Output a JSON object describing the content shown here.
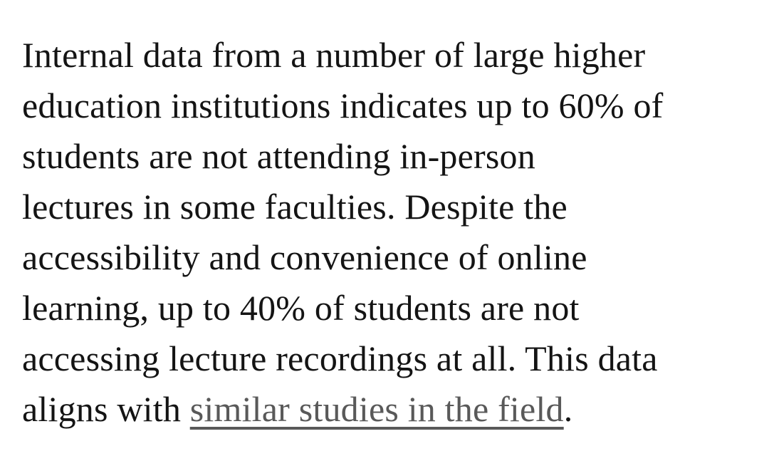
{
  "colors": {
    "background": "#ffffff",
    "text": "#141414",
    "link": "#595959"
  },
  "paragraph": {
    "full_text": "Internal data from a number of large higher education institutions indicates up to 60% of students are not attending in-person lectures in some faculties. Despite the accessibility and convenience of online learning, up to 40% of students are not accessing lecture recordings at all. This data aligns with similar studies in the field.",
    "lines": [
      "Internal data from a number of large higher",
      "education institutions indicates up to 60% of",
      "students are not attending in-person",
      "lectures in some faculties. Despite the",
      "accessibility and convenience of online",
      "learning, up to 40% of students are not",
      "accessing lecture recordings at all. This data"
    ],
    "last_line": {
      "prefix": "aligns with ",
      "link_text": "similar studies in the field",
      "suffix": "."
    }
  }
}
